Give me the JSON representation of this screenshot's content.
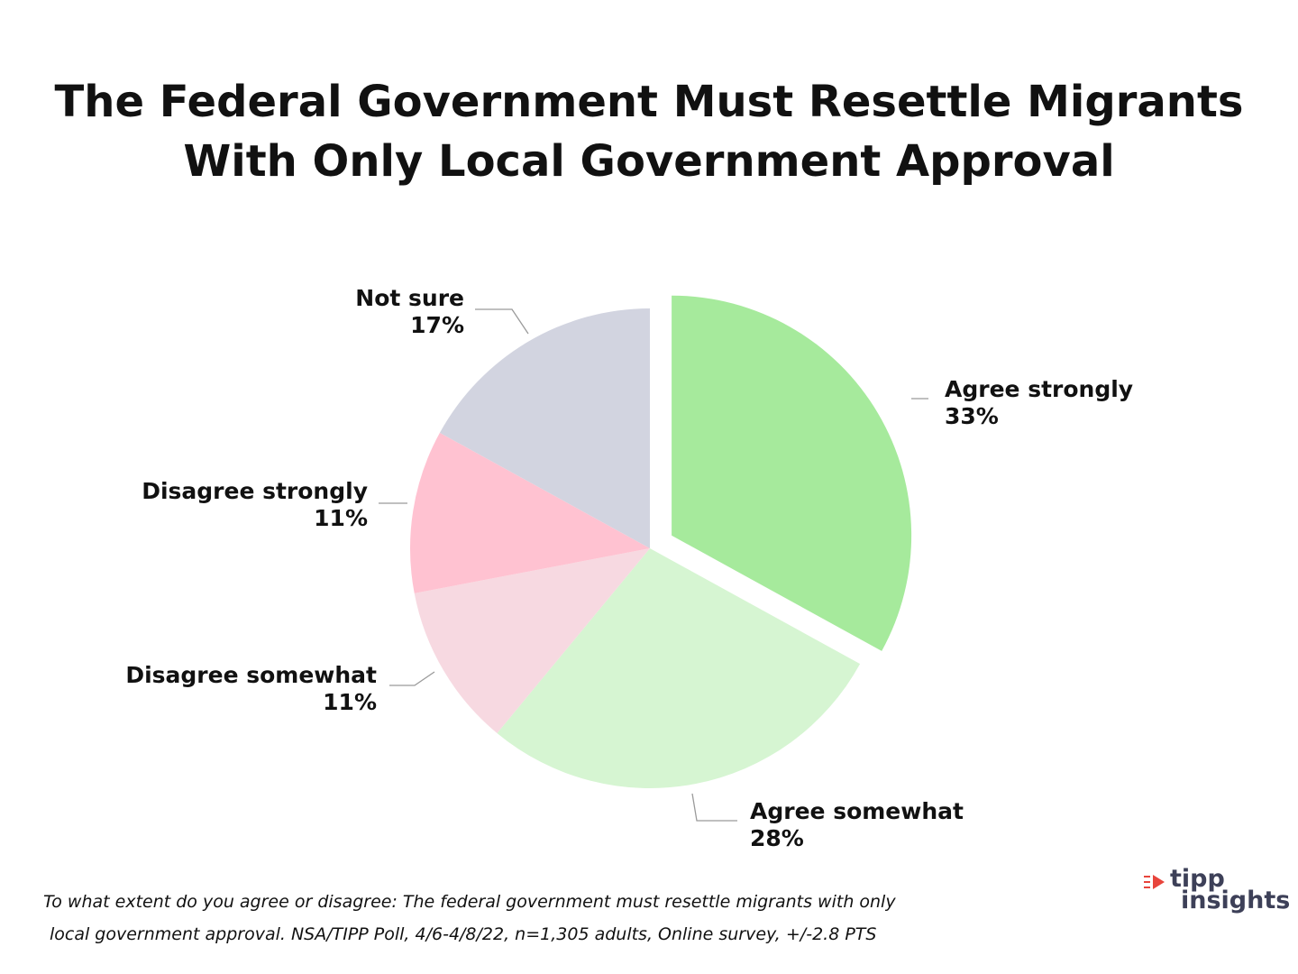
{
  "title": {
    "line1": "The Federal Government Must Resettle Migrants",
    "line2": "With Only Local Government Approval"
  },
  "chart_data": {
    "type": "pie",
    "title": "The Federal Government Must Resettle Migrants With Only Local Government Approval",
    "unit": "%",
    "slices": [
      {
        "label": "Agree strongly",
        "value": 33,
        "display": "33%",
        "color": "#a6ea9c",
        "exploded": true
      },
      {
        "label": "Agree somewhat",
        "value": 28,
        "display": "28%",
        "color": "#d6f5d2",
        "exploded": false
      },
      {
        "label": "Disagree somewhat",
        "value": 11,
        "display": "11%",
        "color": "#f7d9e1",
        "exploded": false
      },
      {
        "label": "Disagree strongly",
        "value": 11,
        "display": "11%",
        "color": "#ffc2d1",
        "exploded": false
      },
      {
        "label": "Not sure",
        "value": 17,
        "display": "17%",
        "color": "#d2d4e0",
        "exploded": false
      }
    ]
  },
  "footnote": {
    "line1": "To what extent do you agree or disagree: The federal government must resettle migrants with only",
    "line2": "local government approval. NSA/TIPP Poll, 4/6-4/8/22, n=1,305 adults, Online survey, +/-2.8 PTS"
  },
  "logo": {
    "line1": "tipp",
    "line2": "insights",
    "accent_color": "#e8453c",
    "text_color": "#3d4058"
  }
}
